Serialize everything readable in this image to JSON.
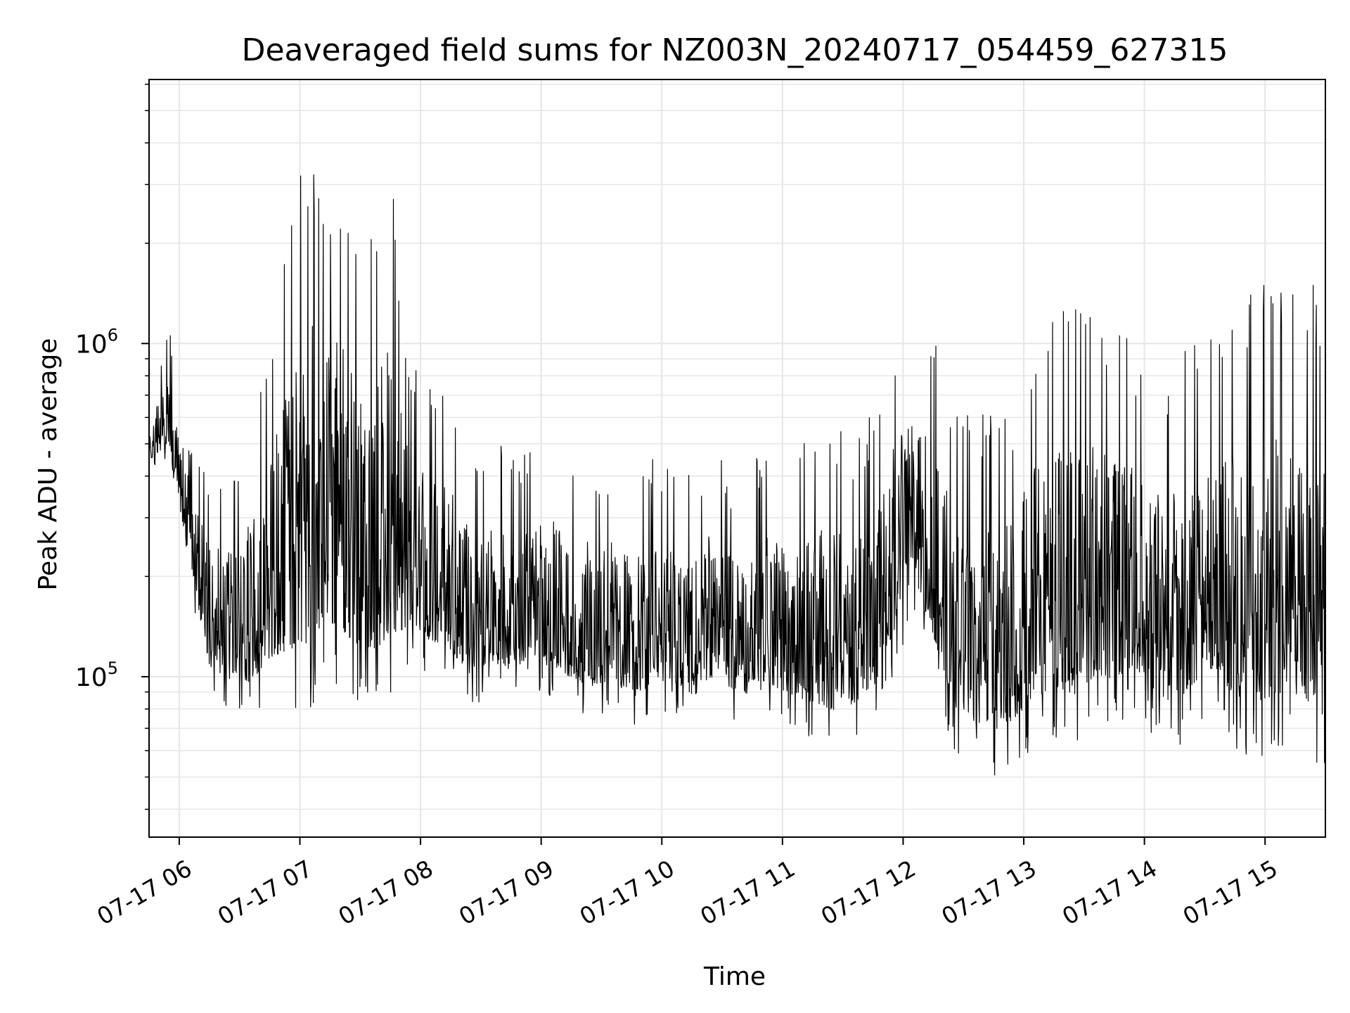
{
  "chart_data": {
    "type": "line",
    "title": "Deaveraged field sums for NZ003N_20240717_054459_627315",
    "xlabel": "Time",
    "ylabel": "Peak ADU - average",
    "xscale": "time",
    "yscale": "log",
    "xlim": [
      "2024-07-17 05:45",
      "2024-07-17 15:30"
    ],
    "ylim": [
      33000,
      6200000
    ],
    "grid": true,
    "grid_color": "#e6e6e6",
    "line_color": "#000000",
    "xtick_labels": [
      "07-17 06",
      "07-17 07",
      "07-17 08",
      "07-17 09",
      "07-17 10",
      "07-17 11",
      "07-17 12",
      "07-17 13",
      "07-17 14",
      "07-17 15"
    ],
    "ytick_labels": [
      {
        "base": "10",
        "exp": "5",
        "value": 100000
      },
      {
        "base": "10",
        "exp": "6",
        "value": 1000000
      }
    ],
    "series": [
      {
        "x": [
          "05:45",
          "05:55",
          "06:05",
          "06:15",
          "06:25",
          "06:35",
          "06:45",
          "06:55",
          "07:05",
          "07:15",
          "07:25",
          "07:35",
          "07:45",
          "07:55",
          "08:05",
          "08:15",
          "08:25",
          "08:35",
          "08:45",
          "08:55",
          "09:05",
          "09:15",
          "09:25",
          "09:35",
          "09:45",
          "09:55",
          "10:05",
          "10:15",
          "10:25",
          "10:35",
          "10:45",
          "10:55",
          "11:05",
          "11:15",
          "11:25",
          "11:35",
          "11:45",
          "11:55",
          "12:05",
          "12:15",
          "12:25",
          "12:35",
          "12:45",
          "12:55",
          "13:05",
          "13:15",
          "13:25",
          "13:35",
          "13:45",
          "13:55",
          "14:05",
          "14:15",
          "14:25",
          "14:35",
          "14:45",
          "14:55",
          "15:05",
          "15:15",
          "15:25",
          "15:30"
        ],
        "y_low": [
          420000,
          450000,
          190000,
          90000,
          80000,
          75000,
          85000,
          80000,
          75000,
          95000,
          85000,
          80000,
          85000,
          110000,
          100000,
          95000,
          80000,
          90000,
          85000,
          95000,
          85000,
          80000,
          75000,
          80000,
          70000,
          75000,
          80000,
          70000,
          80000,
          75000,
          70000,
          75000,
          70000,
          65000,
          60000,
          65000,
          70000,
          100000,
          150000,
          100000,
          60000,
          55000,
          50000,
          55000,
          60000,
          65000,
          60000,
          70000,
          70000,
          80000,
          65000,
          60000,
          70000,
          75000,
          60000,
          55000,
          60000,
          60000,
          55000,
          50000
        ],
        "y_high": [
          700000,
          1100000,
          550000,
          400000,
          450000,
          550000,
          1000000,
          2500000,
          4500000,
          3500000,
          3000000,
          2000000,
          3500000,
          900000,
          800000,
          700000,
          500000,
          550000,
          450000,
          500000,
          550000,
          500000,
          450000,
          450000,
          400000,
          450000,
          450000,
          400000,
          500000,
          400000,
          450000,
          500000,
          450000,
          550000,
          600000,
          500000,
          650000,
          1100000,
          1200000,
          1100000,
          700000,
          600000,
          650000,
          700000,
          1100000,
          1300000,
          1500000,
          1400000,
          1200000,
          1000000,
          900000,
          900000,
          1000000,
          1100000,
          1500000,
          1550000,
          1600000,
          1600000,
          1550000,
          1500000
        ]
      }
    ]
  }
}
